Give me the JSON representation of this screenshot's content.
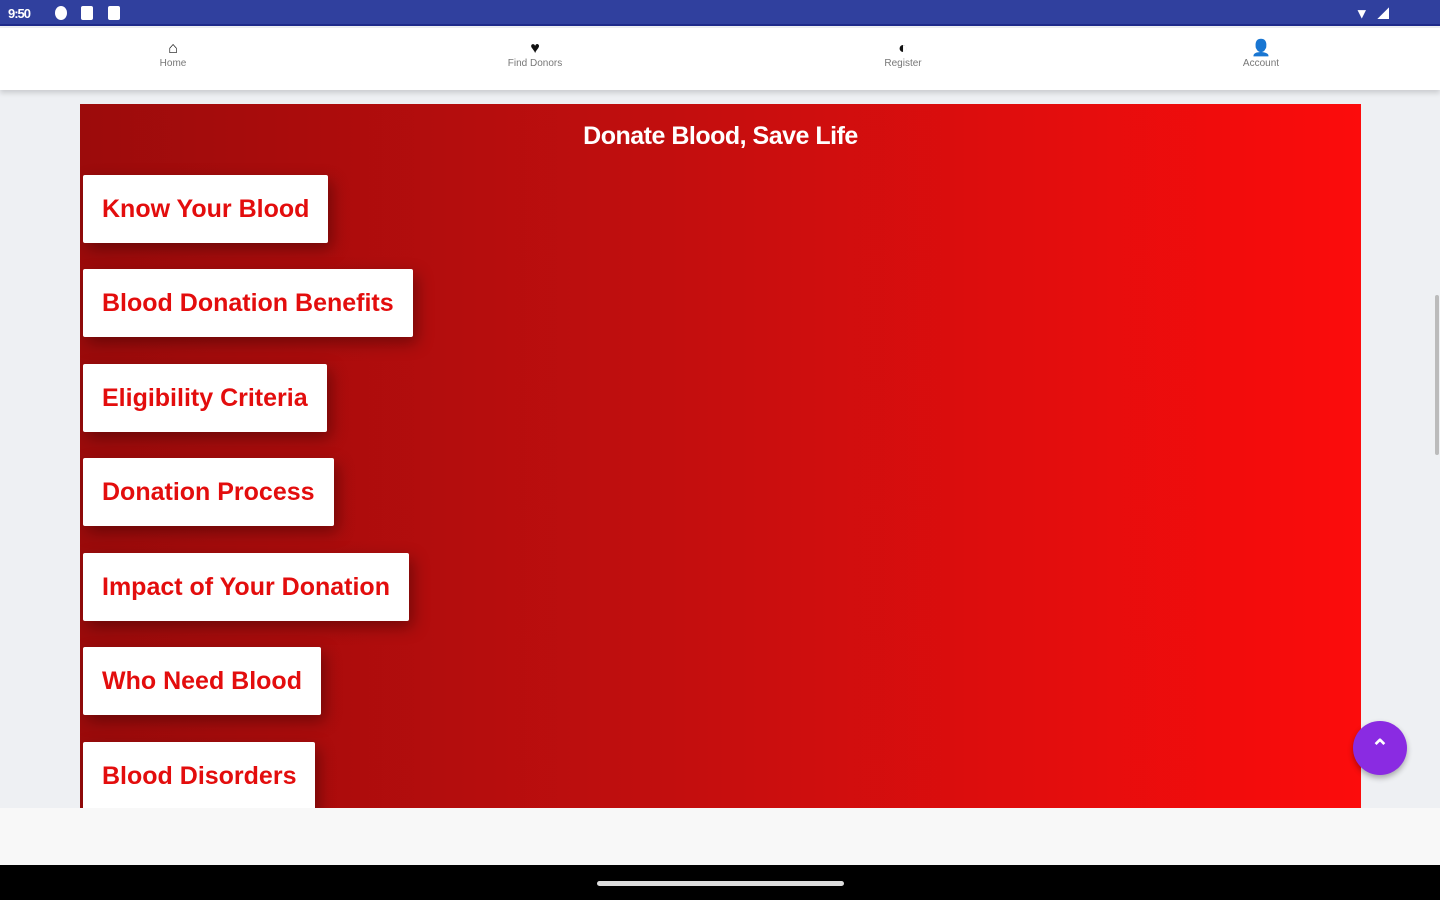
{
  "status_bar": {
    "time": "9:50"
  },
  "nav": {
    "items": [
      {
        "label": "Home",
        "icon": "⌂"
      },
      {
        "label": "Find Donors",
        "icon": "♥"
      },
      {
        "label": "Register",
        "icon": "◐"
      },
      {
        "label": "Account",
        "icon": "👤"
      }
    ]
  },
  "main": {
    "title": "Donate Blood, Save Life",
    "buttons": [
      "Know Your Blood",
      "Blood Donation Benefits",
      "Eligibility Criteria",
      "Donation Process",
      "Impact of Your Donation",
      "Who Need Blood",
      "Blood Disorders"
    ]
  },
  "fab": {
    "icon": "⌃"
  },
  "colors": {
    "status": "#30409e",
    "accent": "#e30d0d",
    "fab": "#8a2be2"
  }
}
